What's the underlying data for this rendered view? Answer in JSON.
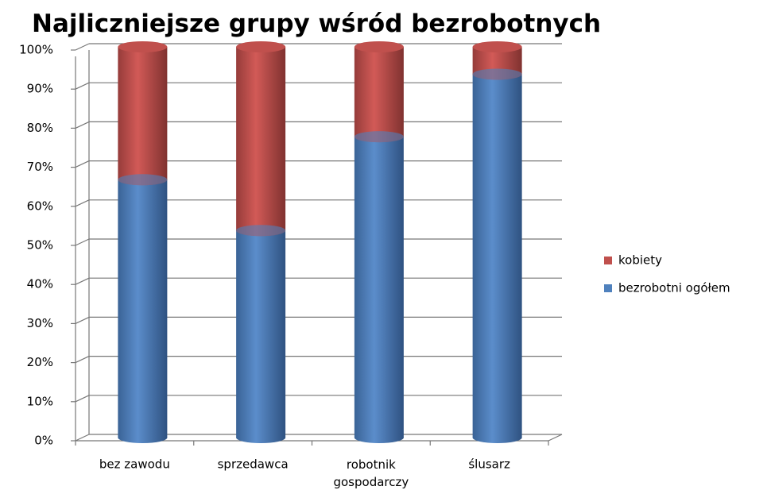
{
  "chart_data": {
    "type": "bar",
    "stacked": true,
    "title": "Najliczniejsze grupy wśród bezrobotnych",
    "categories": [
      "bez zawodu",
      "sprzedawca",
      "robotnik gospodarczy",
      "ślusarz"
    ],
    "series": [
      {
        "name": "bezrobotni ogółem",
        "color": "#4f81bd",
        "values": [
          66,
          53,
          77,
          93
        ]
      },
      {
        "name": "kobiety",
        "color": "#c0504d",
        "values": [
          34,
          47,
          23,
          7
        ]
      }
    ],
    "ylim": [
      0,
      100
    ],
    "yticks": [
      {
        "value": 0,
        "label": "0%"
      },
      {
        "value": 10,
        "label": "10%"
      },
      {
        "value": 20,
        "label": "20%"
      },
      {
        "value": 30,
        "label": "30%"
      },
      {
        "value": 40,
        "label": "40%"
      },
      {
        "value": 50,
        "label": "50%"
      },
      {
        "value": 60,
        "label": "60%"
      },
      {
        "value": 70,
        "label": "70%"
      },
      {
        "value": 80,
        "label": "80%"
      },
      {
        "value": 90,
        "label": "90%"
      },
      {
        "value": 100,
        "label": "100%"
      }
    ],
    "grid": true,
    "legend": "right"
  }
}
